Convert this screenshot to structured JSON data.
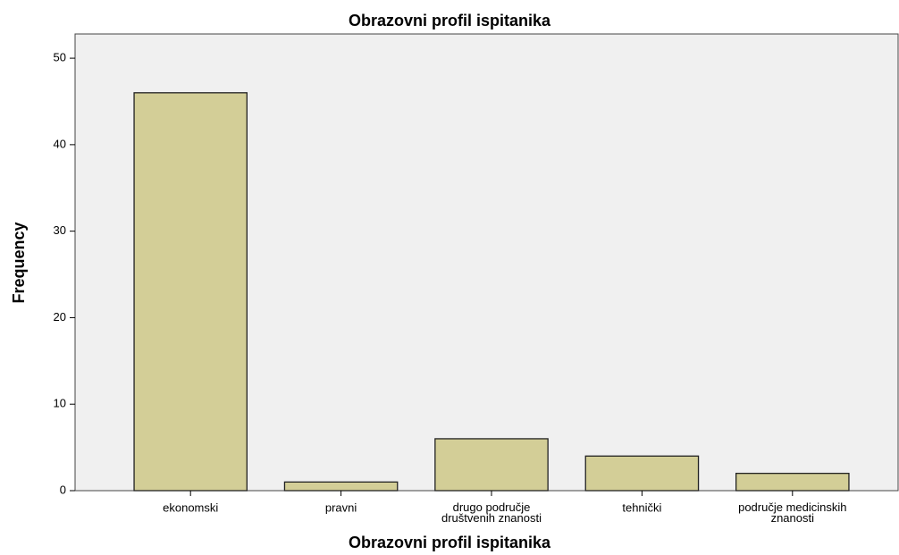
{
  "chart_data": {
    "type": "bar",
    "title": "Obrazovni profil ispitanika",
    "x_label": "Obrazovni profil ispitanika",
    "y_label": "Frequency",
    "categories": [
      "ekonomski",
      "pravni",
      "drugo područje društvenih znanosti",
      "tehnički",
      "područje medicinskih znanosti"
    ],
    "values": [
      46,
      1,
      6,
      4,
      2
    ],
    "color": "#d3ce97",
    "ylim": [
      0,
      52.8
    ],
    "yticks": [
      0,
      10,
      20,
      30,
      40,
      50
    ],
    "grid": false
  }
}
